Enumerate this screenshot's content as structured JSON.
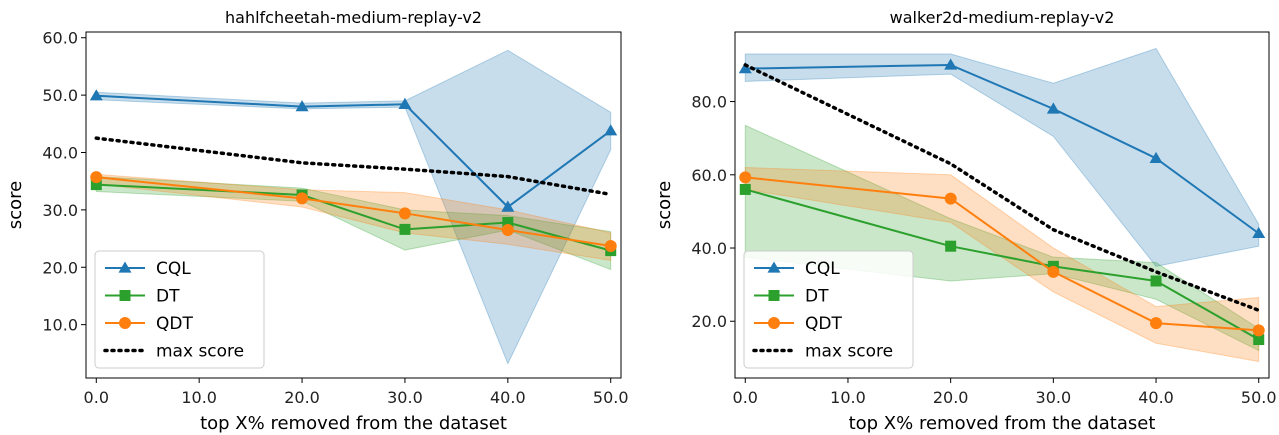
{
  "chart_data": [
    {
      "type": "line",
      "title": "hahlfcheetah-medium-replay-v2",
      "xlabel": "top X% removed from the dataset",
      "ylabel": "score",
      "x": [
        0,
        20,
        30,
        40,
        50
      ],
      "xticks": [
        "0.0",
        "10.0",
        "20.0",
        "30.0",
        "40.0",
        "50.0"
      ],
      "xtick_values": [
        0,
        10,
        20,
        30,
        40,
        50
      ],
      "yticks": [
        "10.0",
        "20.0",
        "30.0",
        "40.0",
        "50.0",
        "60.0"
      ],
      "ytick_values": [
        10,
        20,
        30,
        40,
        50,
        60
      ],
      "xlim": [
        -1,
        51
      ],
      "ylim": [
        0.7,
        61
      ],
      "legend_position": "lower-left",
      "grid": false,
      "series": [
        {
          "name": "CQL",
          "color": "#1f77b4",
          "marker": "triangle",
          "values": [
            49.9,
            48,
            48.4,
            30.5,
            43.8
          ],
          "lower": [
            49.2,
            47.6,
            47.9,
            3.2,
            40.5
          ],
          "upper": [
            50.5,
            48.6,
            49,
            57.8,
            47
          ]
        },
        {
          "name": "DT",
          "color": "#2ca02c",
          "marker": "square",
          "values": [
            34.4,
            32.6,
            26.6,
            27.8,
            22.9
          ],
          "lower": [
            33.2,
            31.5,
            23,
            26.5,
            19.6
          ],
          "upper": [
            35.8,
            33.8,
            30,
            29,
            26.2
          ]
        },
        {
          "name": "QDT",
          "color": "#ff7f0e",
          "marker": "circle",
          "values": [
            35.7,
            32,
            29.4,
            26.5,
            23.7
          ],
          "lower": [
            34.5,
            30.5,
            26,
            24,
            21.2
          ],
          "upper": [
            36.2,
            33.5,
            33,
            30,
            26
          ]
        },
        {
          "name": "max score",
          "color": "#000000",
          "marker": "none",
          "dotted": true,
          "values": [
            42.5,
            38.2,
            37.1,
            35.8,
            32.7
          ]
        }
      ]
    },
    {
      "type": "line",
      "title": "walker2d-medium-replay-v2",
      "xlabel": "top X% removed from the dataset",
      "ylabel": "score",
      "x": [
        0,
        20,
        30,
        40,
        50
      ],
      "xticks": [
        "0.0",
        "10.0",
        "20.0",
        "30.0",
        "40.0",
        "50.0"
      ],
      "xtick_values": [
        0,
        10,
        20,
        30,
        40,
        50
      ],
      "yticks": [
        "20.0",
        "40.0",
        "60.0",
        "80.0"
      ],
      "ytick_values": [
        20,
        40,
        60,
        80
      ],
      "xlim": [
        -1,
        51
      ],
      "ylim": [
        4.5,
        99
      ],
      "legend_position": "lower-left",
      "grid": false,
      "series": [
        {
          "name": "CQL",
          "color": "#1f77b4",
          "marker": "triangle",
          "values": [
            89,
            90,
            78,
            64.5,
            44
          ],
          "lower": [
            85.5,
            87.5,
            70.5,
            35,
            40.5
          ],
          "upper": [
            93,
            93,
            85,
            94.5,
            46.5
          ]
        },
        {
          "name": "DT",
          "color": "#2ca02c",
          "marker": "square",
          "values": [
            56,
            40.5,
            35,
            31,
            15
          ],
          "lower": [
            37.5,
            31,
            33,
            26,
            12
          ],
          "upper": [
            73.5,
            48,
            37.5,
            36,
            18
          ]
        },
        {
          "name": "QDT",
          "color": "#ff7f0e",
          "marker": "circle",
          "values": [
            59.3,
            53.5,
            33.5,
            19.5,
            17.5
          ],
          "lower": [
            56,
            47,
            28,
            14,
            9
          ],
          "upper": [
            62,
            60,
            40,
            24,
            26.5
          ]
        },
        {
          "name": "max score",
          "color": "#000000",
          "marker": "none",
          "dotted": true,
          "values": [
            90,
            63,
            45,
            33.5,
            23
          ]
        }
      ]
    }
  ]
}
